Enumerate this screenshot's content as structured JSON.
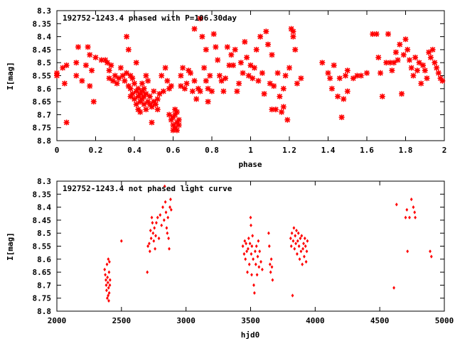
{
  "chart_data": [
    {
      "type": "scatter",
      "title": "192752-1243.4 phased with P=106.30day",
      "xlabel": "phase",
      "ylabel": "I[mag]",
      "xlim": [
        0,
        2
      ],
      "ylim": [
        8.8,
        8.3
      ],
      "y_inverted": true,
      "grid": false,
      "legend": "none",
      "marker_color": "#ff0000",
      "marker": "cross-star",
      "xticks": [
        "0",
        "0.2",
        "0.4",
        "0.6",
        "0.8",
        "1",
        "1.2",
        "1.4",
        "1.6",
        "1.8",
        "2"
      ],
      "yticks": [
        "8.3",
        "8.35",
        "8.4",
        "8.45",
        "8.5",
        "8.55",
        "8.6",
        "8.65",
        "8.7",
        "8.75",
        "8.8"
      ],
      "points": [
        [
          0.0,
          8.54
        ],
        [
          0.0,
          8.55
        ],
        [
          0.03,
          8.52
        ],
        [
          0.04,
          8.58
        ],
        [
          0.05,
          8.51
        ],
        [
          0.05,
          8.73
        ],
        [
          0.1,
          8.5
        ],
        [
          0.1,
          8.55
        ],
        [
          0.11,
          8.44
        ],
        [
          0.13,
          8.57
        ],
        [
          0.15,
          8.51
        ],
        [
          0.16,
          8.44
        ],
        [
          0.17,
          8.47
        ],
        [
          0.17,
          8.59
        ],
        [
          0.18,
          8.53
        ],
        [
          0.19,
          8.65
        ],
        [
          0.2,
          8.48
        ],
        [
          0.23,
          8.49
        ],
        [
          0.25,
          8.49
        ],
        [
          0.26,
          8.5
        ],
        [
          0.27,
          8.53
        ],
        [
          0.27,
          8.56
        ],
        [
          0.28,
          8.51
        ],
        [
          0.29,
          8.57
        ],
        [
          0.3,
          8.55
        ],
        [
          0.31,
          8.58
        ],
        [
          0.32,
          8.56
        ],
        [
          0.33,
          8.52
        ],
        [
          0.34,
          8.55
        ],
        [
          0.35,
          8.57
        ],
        [
          0.36,
          8.4
        ],
        [
          0.36,
          8.54
        ],
        [
          0.37,
          8.45
        ],
        [
          0.37,
          8.59
        ],
        [
          0.38,
          8.6
        ],
        [
          0.38,
          8.55
        ],
        [
          0.38,
          8.63
        ],
        [
          0.39,
          8.56
        ],
        [
          0.39,
          8.62
        ],
        [
          0.4,
          8.64
        ],
        [
          0.4,
          8.58
        ],
        [
          0.41,
          8.5
        ],
        [
          0.41,
          8.61
        ],
        [
          0.41,
          8.66
        ],
        [
          0.42,
          8.6
        ],
        [
          0.42,
          8.63
        ],
        [
          0.42,
          8.68
        ],
        [
          0.43,
          8.62
        ],
        [
          0.43,
          8.65
        ],
        [
          0.43,
          8.69
        ],
        [
          0.44,
          8.61
        ],
        [
          0.44,
          8.64
        ],
        [
          0.44,
          8.58
        ],
        [
          0.45,
          8.63
        ],
        [
          0.45,
          8.66
        ],
        [
          0.45,
          8.6
        ],
        [
          0.46,
          8.55
        ],
        [
          0.46,
          8.62
        ],
        [
          0.46,
          8.68
        ],
        [
          0.47,
          8.65
        ],
        [
          0.47,
          8.57
        ],
        [
          0.48,
          8.66
        ],
        [
          0.48,
          8.63
        ],
        [
          0.49,
          8.67
        ],
        [
          0.49,
          8.73
        ],
        [
          0.5,
          8.65
        ],
        [
          0.5,
          8.61
        ],
        [
          0.51,
          8.66
        ],
        [
          0.52,
          8.68
        ],
        [
          0.52,
          8.64
        ],
        [
          0.53,
          8.62
        ],
        [
          0.54,
          8.55
        ],
        [
          0.55,
          8.61
        ],
        [
          0.56,
          8.52
        ],
        [
          0.57,
          8.57
        ],
        [
          0.58,
          8.6
        ],
        [
          0.58,
          8.7
        ],
        [
          0.59,
          8.59
        ],
        [
          0.59,
          8.72
        ],
        [
          0.6,
          8.71
        ],
        [
          0.6,
          8.74
        ],
        [
          0.6,
          8.76
        ],
        [
          0.61,
          8.68
        ],
        [
          0.61,
          8.7
        ],
        [
          0.61,
          8.75
        ],
        [
          0.62,
          8.73
        ],
        [
          0.62,
          8.69
        ],
        [
          0.62,
          8.76
        ],
        [
          0.63,
          8.72
        ],
        [
          0.63,
          8.74
        ],
        [
          0.64,
          8.59
        ],
        [
          0.64,
          8.55
        ],
        [
          0.65,
          8.52
        ],
        [
          0.66,
          8.6
        ],
        [
          0.67,
          8.58
        ],
        [
          0.68,
          8.53
        ],
        [
          0.69,
          8.54
        ],
        [
          0.7,
          8.61
        ],
        [
          0.71,
          8.37
        ],
        [
          0.71,
          8.57
        ],
        [
          0.72,
          8.64
        ],
        [
          0.73,
          8.6
        ],
        [
          0.74,
          8.33
        ],
        [
          0.74,
          8.61
        ],
        [
          0.75,
          8.4
        ],
        [
          0.76,
          8.52
        ],
        [
          0.77,
          8.45
        ],
        [
          0.77,
          8.57
        ],
        [
          0.78,
          8.6
        ],
        [
          0.78,
          8.65
        ],
        [
          0.79,
          8.55
        ],
        [
          0.8,
          8.61
        ],
        [
          0.81,
          8.39
        ],
        [
          0.82,
          8.44
        ],
        [
          0.83,
          8.49
        ],
        [
          0.84,
          8.55
        ],
        [
          0.85,
          8.57
        ],
        [
          0.86,
          8.61
        ],
        [
          0.87,
          8.56
        ],
        [
          0.88,
          8.44
        ],
        [
          0.89,
          8.51
        ],
        [
          0.9,
          8.47
        ],
        [
          0.91,
          8.51
        ],
        [
          0.92,
          8.45
        ],
        [
          0.93,
          8.61
        ],
        [
          0.94,
          8.58
        ],
        [
          0.95,
          8.5
        ],
        [
          0.96,
          8.54
        ],
        [
          0.97,
          8.42
        ],
        [
          0.98,
          8.48
        ],
        [
          0.99,
          8.55
        ],
        [
          1.0,
          8.51
        ],
        [
          1.01,
          8.56
        ],
        [
          1.02,
          8.52
        ],
        [
          1.03,
          8.45
        ],
        [
          1.04,
          8.57
        ],
        [
          1.05,
          8.4
        ],
        [
          1.06,
          8.54
        ],
        [
          1.07,
          8.62
        ],
        [
          1.08,
          8.38
        ],
        [
          1.09,
          8.43
        ],
        [
          1.1,
          8.58
        ],
        [
          1.11,
          8.68
        ],
        [
          1.11,
          8.47
        ],
        [
          1.12,
          8.59
        ],
        [
          1.13,
          8.68
        ],
        [
          1.14,
          8.54
        ],
        [
          1.15,
          8.63
        ],
        [
          1.16,
          8.69
        ],
        [
          1.17,
          8.6
        ],
        [
          1.17,
          8.67
        ],
        [
          1.18,
          8.55
        ],
        [
          1.19,
          8.72
        ],
        [
          1.2,
          8.52
        ],
        [
          1.21,
          8.37
        ],
        [
          1.22,
          8.38
        ],
        [
          1.22,
          8.4
        ],
        [
          1.23,
          8.45
        ],
        [
          1.24,
          8.58
        ],
        [
          1.26,
          8.56
        ],
        [
          1.37,
          8.5
        ],
        [
          1.4,
          8.54
        ],
        [
          1.41,
          8.56
        ],
        [
          1.42,
          8.6
        ],
        [
          1.43,
          8.51
        ],
        [
          1.45,
          8.63
        ],
        [
          1.46,
          8.56
        ],
        [
          1.47,
          8.71
        ],
        [
          1.48,
          8.64
        ],
        [
          1.49,
          8.55
        ],
        [
          1.5,
          8.53
        ],
        [
          1.5,
          8.61
        ],
        [
          1.53,
          8.56
        ],
        [
          1.55,
          8.55
        ],
        [
          1.57,
          8.55
        ],
        [
          1.6,
          8.54
        ],
        [
          1.63,
          8.39
        ],
        [
          1.65,
          8.39
        ],
        [
          1.66,
          8.48
        ],
        [
          1.67,
          8.54
        ],
        [
          1.68,
          8.63
        ],
        [
          1.7,
          8.5
        ],
        [
          1.71,
          8.39
        ],
        [
          1.72,
          8.5
        ],
        [
          1.73,
          8.53
        ],
        [
          1.74,
          8.5
        ],
        [
          1.75,
          8.46
        ],
        [
          1.76,
          8.49
        ],
        [
          1.77,
          8.43
        ],
        [
          1.78,
          8.62
        ],
        [
          1.79,
          8.47
        ],
        [
          1.8,
          8.41
        ],
        [
          1.81,
          8.45
        ],
        [
          1.82,
          8.49
        ],
        [
          1.83,
          8.52
        ],
        [
          1.84,
          8.55
        ],
        [
          1.85,
          8.48
        ],
        [
          1.86,
          8.53
        ],
        [
          1.87,
          8.5
        ],
        [
          1.88,
          8.58
        ],
        [
          1.89,
          8.51
        ],
        [
          1.9,
          8.53
        ],
        [
          1.91,
          8.56
        ],
        [
          1.92,
          8.46
        ],
        [
          1.93,
          8.48
        ],
        [
          1.94,
          8.45
        ],
        [
          1.95,
          8.5
        ],
        [
          1.96,
          8.52
        ],
        [
          1.97,
          8.54
        ],
        [
          1.98,
          8.56
        ],
        [
          1.99,
          8.57
        ]
      ]
    },
    {
      "type": "scatter",
      "title": "192752-1243.4 not phased light curve",
      "xlabel": "hjd0",
      "ylabel": "I[mag]",
      "xlim": [
        2000,
        5000
      ],
      "ylim": [
        8.8,
        8.3
      ],
      "y_inverted": true,
      "grid": false,
      "legend": "none",
      "marker_color": "#ff0000",
      "marker": "diamond",
      "xticks": [
        "2000",
        "2500",
        "3000",
        "3500",
        "4000",
        "4500",
        "5000"
      ],
      "yticks": [
        "8.3",
        "8.35",
        "8.4",
        "8.45",
        "8.5",
        "8.55",
        "8.6",
        "8.65",
        "8.7",
        "8.75",
        "8.8"
      ],
      "points": [
        [
          2370,
          8.64
        ],
        [
          2375,
          8.66
        ],
        [
          2380,
          8.68
        ],
        [
          2382,
          8.7
        ],
        [
          2385,
          8.72
        ],
        [
          2388,
          8.62
        ],
        [
          2390,
          8.75
        ],
        [
          2392,
          8.67
        ],
        [
          2395,
          8.69
        ],
        [
          2397,
          8.74
        ],
        [
          2398,
          8.6
        ],
        [
          2400,
          8.71
        ],
        [
          2402,
          8.76
        ],
        [
          2404,
          8.65
        ],
        [
          2405,
          8.73
        ],
        [
          2407,
          8.61
        ],
        [
          2410,
          8.7
        ],
        [
          2412,
          8.68
        ],
        [
          2500,
          8.53
        ],
        [
          2700,
          8.65
        ],
        [
          2705,
          8.55
        ],
        [
          2715,
          8.54
        ],
        [
          2720,
          8.57
        ],
        [
          2725,
          8.49
        ],
        [
          2730,
          8.52
        ],
        [
          2735,
          8.44
        ],
        [
          2740,
          8.46
        ],
        [
          2745,
          8.5
        ],
        [
          2750,
          8.53
        ],
        [
          2755,
          8.48
        ],
        [
          2760,
          8.56
        ],
        [
          2765,
          8.51
        ],
        [
          2770,
          8.46
        ],
        [
          2780,
          8.44
        ],
        [
          2790,
          8.52
        ],
        [
          2800,
          8.43
        ],
        [
          2810,
          8.47
        ],
        [
          2820,
          8.4
        ],
        [
          2830,
          8.45
        ],
        [
          2835,
          8.32
        ],
        [
          2840,
          8.38
        ],
        [
          2845,
          8.42
        ],
        [
          2850,
          8.48
        ],
        [
          2855,
          8.5
        ],
        [
          2860,
          8.44
        ],
        [
          2865,
          8.52
        ],
        [
          2870,
          8.56
        ],
        [
          2875,
          8.4
        ],
        [
          2880,
          8.37
        ],
        [
          2885,
          8.41
        ],
        [
          3440,
          8.55
        ],
        [
          3450,
          8.58
        ],
        [
          3455,
          8.53
        ],
        [
          3460,
          8.6
        ],
        [
          3465,
          8.54
        ],
        [
          3470,
          8.57
        ],
        [
          3475,
          8.65
        ],
        [
          3480,
          8.56
        ],
        [
          3485,
          8.52
        ],
        [
          3490,
          8.62
        ],
        [
          3495,
          8.54
        ],
        [
          3500,
          8.44
        ],
        [
          3503,
          8.47
        ],
        [
          3505,
          8.58
        ],
        [
          3508,
          8.66
        ],
        [
          3510,
          8.55
        ],
        [
          3515,
          8.51
        ],
        [
          3520,
          8.6
        ],
        [
          3525,
          8.7
        ],
        [
          3530,
          8.73
        ],
        [
          3535,
          8.57
        ],
        [
          3540,
          8.62
        ],
        [
          3545,
          8.55
        ],
        [
          3550,
          8.66
        ],
        [
          3555,
          8.59
        ],
        [
          3560,
          8.53
        ],
        [
          3565,
          8.63
        ],
        [
          3570,
          8.57
        ],
        [
          3580,
          8.61
        ],
        [
          3590,
          8.64
        ],
        [
          3640,
          8.5
        ],
        [
          3645,
          8.55
        ],
        [
          3650,
          8.62
        ],
        [
          3655,
          8.65
        ],
        [
          3660,
          8.6
        ],
        [
          3665,
          8.63
        ],
        [
          3670,
          8.68
        ],
        [
          3810,
          8.52
        ],
        [
          3815,
          8.55
        ],
        [
          3820,
          8.5
        ],
        [
          3825,
          8.74
        ],
        [
          3830,
          8.53
        ],
        [
          3835,
          8.48
        ],
        [
          3840,
          8.56
        ],
        [
          3845,
          8.51
        ],
        [
          3850,
          8.54
        ],
        [
          3855,
          8.49
        ],
        [
          3860,
          8.58
        ],
        [
          3865,
          8.53
        ],
        [
          3870,
          8.5
        ],
        [
          3875,
          8.55
        ],
        [
          3880,
          8.6
        ],
        [
          3885,
          8.52
        ],
        [
          3890,
          8.57
        ],
        [
          3895,
          8.51
        ],
        [
          3900,
          8.62
        ],
        [
          3905,
          8.56
        ],
        [
          3910,
          8.54
        ],
        [
          3915,
          8.59
        ],
        [
          3920,
          8.52
        ],
        [
          3925,
          8.55
        ],
        [
          3930,
          8.61
        ],
        [
          3935,
          8.57
        ],
        [
          3940,
          8.53
        ],
        [
          4610,
          8.71
        ],
        [
          4630,
          8.39
        ],
        [
          4700,
          8.44
        ],
        [
          4710,
          8.41
        ],
        [
          4715,
          8.57
        ],
        [
          4730,
          8.44
        ],
        [
          4745,
          8.37
        ],
        [
          4760,
          8.4
        ],
        [
          4770,
          8.42
        ],
        [
          4775,
          8.44
        ],
        [
          4890,
          8.57
        ],
        [
          4900,
          8.59
        ]
      ]
    }
  ]
}
